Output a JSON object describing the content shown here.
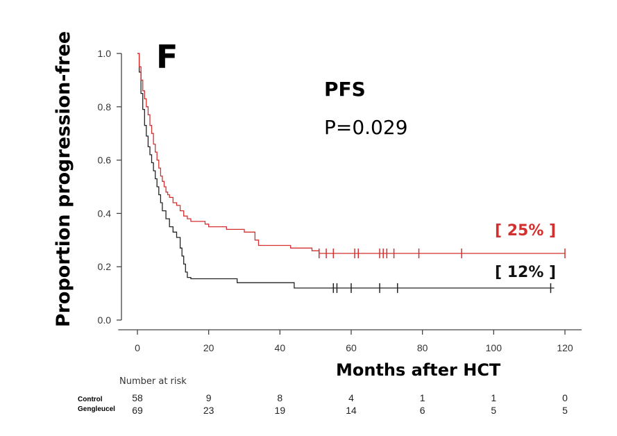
{
  "chart_data": {
    "type": "line",
    "panel_label": "F",
    "title": "PFS",
    "p_value": "P=0.029",
    "xlabel": "Months after HCT",
    "ylabel": "Proportion progression-free",
    "xlim": [
      -5,
      125
    ],
    "ylim": [
      0,
      1.0
    ],
    "x_ticks": [
      0,
      20,
      40,
      60,
      80,
      100,
      120
    ],
    "y_ticks": [
      0.0,
      0.2,
      0.4,
      0.6,
      0.8,
      1.0
    ],
    "x_tick_labels": [
      "0",
      "20",
      "40",
      "60",
      "80",
      "100",
      "120"
    ],
    "y_tick_labels": [
      "0.0",
      "0.2",
      "0.4",
      "0.6",
      "0.8",
      "1.0"
    ],
    "series": [
      {
        "name": "Gengleucel",
        "color": "#d32f2f",
        "end_label": "[ 25% ]",
        "steps": [
          [
            0,
            1.0
          ],
          [
            0.5,
            0.95
          ],
          [
            1,
            0.9
          ],
          [
            1.5,
            0.86
          ],
          [
            2,
            0.83
          ],
          [
            2.5,
            0.8
          ],
          [
            3,
            0.77
          ],
          [
            3.5,
            0.73
          ],
          [
            4,
            0.7
          ],
          [
            4.5,
            0.66
          ],
          [
            5,
            0.63
          ],
          [
            5.5,
            0.6
          ],
          [
            6,
            0.57
          ],
          [
            6.5,
            0.54
          ],
          [
            7,
            0.52
          ],
          [
            7.5,
            0.5
          ],
          [
            8,
            0.48
          ],
          [
            8.5,
            0.47
          ],
          [
            9,
            0.46
          ],
          [
            10,
            0.44
          ],
          [
            11,
            0.43
          ],
          [
            12,
            0.41
          ],
          [
            13,
            0.39
          ],
          [
            14,
            0.38
          ],
          [
            15,
            0.37
          ],
          [
            19,
            0.36
          ],
          [
            20,
            0.35
          ],
          [
            25,
            0.34
          ],
          [
            30,
            0.33
          ],
          [
            33,
            0.3
          ],
          [
            34,
            0.28
          ],
          [
            35,
            0.28
          ],
          [
            41,
            0.28
          ],
          [
            43,
            0.27
          ],
          [
            48,
            0.27
          ],
          [
            49,
            0.26
          ],
          [
            51,
            0.25
          ],
          [
            120,
            0.25
          ]
        ],
        "censor_x": [
          51,
          53,
          55,
          61,
          62,
          68,
          69,
          70,
          72,
          79,
          91,
          120
        ]
      },
      {
        "name": "Control",
        "color": "#222222",
        "end_label": "[ 12% ]",
        "steps": [
          [
            0,
            1.0
          ],
          [
            0.5,
            0.93
          ],
          [
            1,
            0.85
          ],
          [
            1.5,
            0.79
          ],
          [
            2,
            0.73
          ],
          [
            2.5,
            0.69
          ],
          [
            3,
            0.65
          ],
          [
            3.5,
            0.62
          ],
          [
            4,
            0.59
          ],
          [
            4.5,
            0.56
          ],
          [
            5,
            0.53
          ],
          [
            5.5,
            0.5
          ],
          [
            6,
            0.47
          ],
          [
            6.5,
            0.44
          ],
          [
            7,
            0.41
          ],
          [
            8,
            0.38
          ],
          [
            9,
            0.35
          ],
          [
            10,
            0.33
          ],
          [
            11,
            0.31
          ],
          [
            12,
            0.27
          ],
          [
            12.5,
            0.24
          ],
          [
            13,
            0.21
          ],
          [
            13.5,
            0.18
          ],
          [
            14,
            0.16
          ],
          [
            15,
            0.155
          ],
          [
            27,
            0.155
          ],
          [
            28,
            0.14
          ],
          [
            43,
            0.14
          ],
          [
            44,
            0.12
          ],
          [
            117,
            0.12
          ]
        ],
        "censor_x": [
          55,
          56,
          60,
          68,
          73,
          116
        ]
      }
    ],
    "risk_table": {
      "title": "Number at risk",
      "groups": [
        "Control",
        "Gengleucel"
      ],
      "timepoints": [
        0,
        20,
        40,
        60,
        80,
        100,
        120
      ],
      "rows": [
        [
          "58",
          "9",
          "8",
          "4",
          "1",
          "1",
          "0"
        ],
        [
          "69",
          "23",
          "19",
          "14",
          "6",
          "5",
          "5"
        ]
      ]
    }
  }
}
